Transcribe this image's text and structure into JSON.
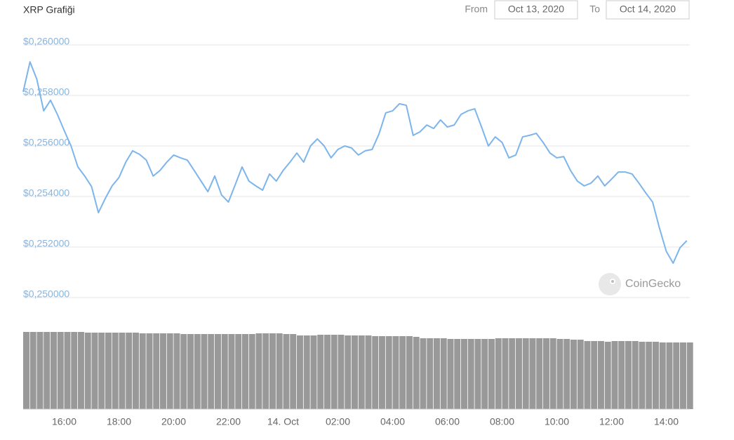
{
  "chart_data": {
    "type": "line",
    "title": "XRP Grafiği",
    "from_label": "From",
    "from_date": "Oct 13, 2020",
    "to_label": "To",
    "to_date": "Oct 14, 2020",
    "watermark": "CoinGecko",
    "grid": true,
    "ylim": [
      0.25,
      0.26
    ],
    "yticks": [
      {
        "value": 0.25,
        "label": "$0,250000"
      },
      {
        "value": 0.252,
        "label": "$0,252000"
      },
      {
        "value": 0.254,
        "label": "$0,254000"
      },
      {
        "value": 0.256,
        "label": "$0,256000"
      },
      {
        "value": 0.258,
        "label": "$0,258000"
      },
      {
        "value": 0.26,
        "label": "$0,260000"
      }
    ],
    "y2lim": [
      0,
      120
    ],
    "categories": [
      null,
      null,
      null,
      null,
      null,
      null,
      "16:00",
      null,
      null,
      null,
      null,
      null,
      null,
      null,
      "18:00",
      null,
      null,
      null,
      null,
      null,
      null,
      null,
      "20:00",
      null,
      null,
      null,
      null,
      null,
      null,
      null,
      "22:00",
      null,
      null,
      null,
      null,
      null,
      null,
      null,
      "14. Oct",
      null,
      null,
      null,
      null,
      null,
      null,
      null,
      "02:00",
      null,
      null,
      null,
      null,
      null,
      null,
      null,
      "04:00",
      null,
      null,
      null,
      null,
      null,
      null,
      null,
      "06:00",
      null,
      null,
      null,
      null,
      null,
      null,
      null,
      "08:00",
      null,
      null,
      null,
      null,
      null,
      null,
      null,
      "10:00",
      null,
      null,
      null,
      null,
      null,
      null,
      null,
      "12:00",
      null,
      null,
      null,
      null,
      null,
      null,
      null,
      "14:00",
      null,
      null,
      null
    ],
    "series": [
      {
        "name": "Price",
        "color": "#7cb5ec",
        "values": [
          0.25814,
          0.25933,
          0.25864,
          0.25739,
          0.25781,
          0.25725,
          0.25661,
          0.256,
          0.25517,
          0.25481,
          0.25439,
          0.25336,
          0.25392,
          0.25442,
          0.25475,
          0.25536,
          0.25581,
          0.25567,
          0.25544,
          0.25481,
          0.25503,
          0.25536,
          0.25564,
          0.25553,
          0.25544,
          0.25503,
          0.25461,
          0.25419,
          0.25481,
          0.25406,
          0.25378,
          0.25447,
          0.25517,
          0.25461,
          0.25442,
          0.25425,
          0.25489,
          0.25461,
          0.25503,
          0.25536,
          0.25572,
          0.25536,
          0.256,
          0.25628,
          0.256,
          0.25553,
          0.25586,
          0.256,
          0.25592,
          0.25564,
          0.25581,
          0.25586,
          0.25647,
          0.25731,
          0.25739,
          0.25767,
          0.25761,
          0.25642,
          0.25656,
          0.25683,
          0.25669,
          0.25703,
          0.25675,
          0.25683,
          0.25725,
          0.25739,
          0.25747,
          0.25675,
          0.256,
          0.25636,
          0.25614,
          0.25553,
          0.25564,
          0.25636,
          0.25642,
          0.2565,
          0.25614,
          0.25572,
          0.25553,
          0.25558,
          0.25503,
          0.25461,
          0.25442,
          0.25453,
          0.25481,
          0.25442,
          0.25469,
          0.25497,
          0.25497,
          0.25489,
          0.25453,
          0.25414,
          0.25378,
          0.25275,
          0.25183,
          0.25136,
          0.25197,
          0.25225
        ]
      },
      {
        "name": "Volume",
        "color": "#999999",
        "axis": "y2",
        "values": [
          110,
          110,
          110,
          110,
          110,
          110,
          110,
          110,
          110,
          109,
          109,
          109,
          109,
          109,
          109,
          109,
          109,
          108,
          108,
          108,
          108,
          108,
          108,
          107,
          107,
          107,
          107,
          107,
          107,
          107,
          107,
          107,
          107,
          107,
          108,
          108,
          108,
          108,
          107,
          107,
          105,
          105,
          105,
          106,
          106,
          106,
          106,
          105,
          105,
          105,
          105,
          104,
          104,
          104,
          104,
          104,
          104,
          103,
          101,
          101,
          101,
          101,
          100,
          100,
          100,
          100,
          100,
          100,
          100,
          101,
          101,
          101,
          101,
          101,
          101,
          101,
          101,
          101,
          100,
          100,
          99,
          99,
          97,
          97,
          97,
          96,
          97,
          97,
          97,
          97,
          96,
          96,
          96,
          95,
          95,
          95,
          95,
          95
        ]
      }
    ]
  }
}
